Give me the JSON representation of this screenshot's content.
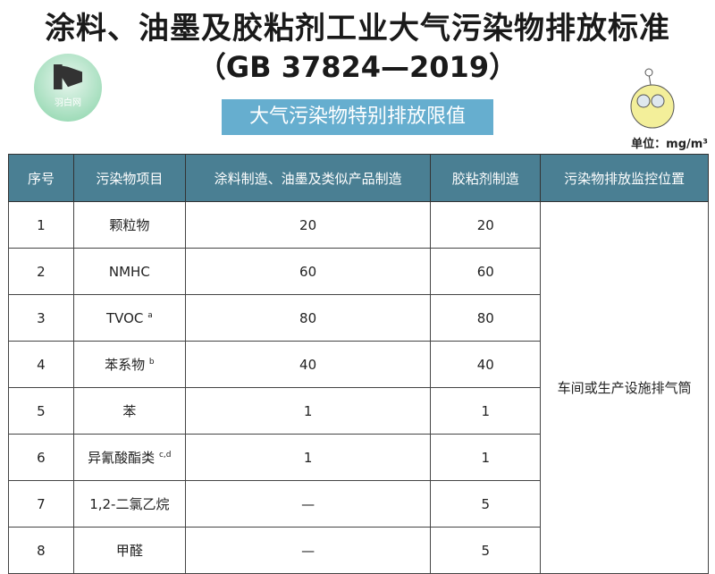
{
  "title": "涂料、油墨及胶粘剂工业大气污染物排放标准",
  "subtitle": "（GB 37824—2019）",
  "logo_text": "羽白网",
  "banner": "大气污染物特别排放限值",
  "unit": "单位：mg/m³",
  "headers": [
    "序号",
    "污染物项目",
    "涂料制造、油墨及类似产品制造",
    "胶粘剂制造",
    "污染物排放监控位置"
  ],
  "rows": [
    {
      "no": "1",
      "item": "颗粒物",
      "sup": "",
      "coating": "20",
      "adhesive": "20"
    },
    {
      "no": "2",
      "item": "NMHC",
      "sup": "",
      "coating": "60",
      "adhesive": "60"
    },
    {
      "no": "3",
      "item": "TVOC",
      "sup": "a",
      "coating": "80",
      "adhesive": "80"
    },
    {
      "no": "4",
      "item": "苯系物",
      "sup": "b",
      "coating": "40",
      "adhesive": "40"
    },
    {
      "no": "5",
      "item": "苯",
      "sup": "",
      "coating": "1",
      "adhesive": "1"
    },
    {
      "no": "6",
      "item": "异氰酸酯类",
      "sup": "c,d",
      "coating": "1",
      "adhesive": "1"
    },
    {
      "no": "7",
      "item": "1,2-二氯乙烷",
      "sup": "",
      "coating": "—",
      "adhesive": "5"
    },
    {
      "no": "8",
      "item": "甲醛",
      "sup": "",
      "coating": "—",
      "adhesive": "5"
    }
  ],
  "location": "车间或生产设施排气筒"
}
